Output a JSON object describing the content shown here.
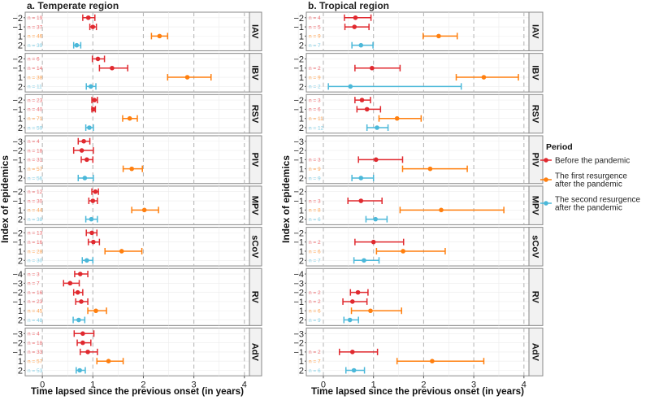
{
  "chart_data": {
    "type": "forest",
    "ylabel": "Index of epidemics",
    "xlabel": "Time lapsed since the previous onset (in years)",
    "xlim": [
      -0.34,
      4.1
    ],
    "xticks": [
      0,
      1,
      2,
      3,
      4
    ],
    "n_prefix": "n = ",
    "legend": {
      "title": "Period",
      "placement": "right",
      "items": [
        {
          "key": "before",
          "label": [
            "Before the pandemic"
          ],
          "color": "#e0292f"
        },
        {
          "key": "first",
          "label": [
            "The first resurgence",
            "after the pandemic"
          ],
          "color": "#ff7f0e"
        },
        {
          "key": "second",
          "label": [
            "The second resurgence",
            "after the pandemic"
          ],
          "color": "#4bb8d9"
        }
      ]
    },
    "row_format": [
      "index",
      "n",
      "estimate",
      "ci_low",
      "ci_high"
    ],
    "regions": [
      {
        "title": "a. Temperate region",
        "panels": [
          {
            "virus": "IAV",
            "rows": [
              [
                -2,
                19,
                0.91,
                0.8,
                1.04
              ],
              [
                -1,
                37,
                1.0,
                0.94,
                1.07
              ],
              [
                1,
                46,
                2.32,
                2.16,
                2.48
              ],
              [
                2,
                39,
                0.68,
                0.62,
                0.76
              ]
            ]
          },
          {
            "virus": "IBV",
            "rows": [
              [
                -2,
                6,
                1.1,
                0.99,
                1.23
              ],
              [
                -1,
                14,
                1.38,
                1.13,
                1.69
              ],
              [
                1,
                38,
                2.87,
                2.48,
                3.34
              ],
              [
                2,
                11,
                0.96,
                0.87,
                1.06
              ]
            ]
          },
          {
            "virus": "RSV",
            "rows": [
              [
                -2,
                23,
                1.03,
                0.98,
                1.09
              ],
              [
                -1,
                40,
                1.01,
                0.98,
                1.05
              ],
              [
                1,
                71,
                1.73,
                1.59,
                1.88
              ],
              [
                2,
                59,
                0.93,
                0.86,
                1.01
              ]
            ]
          },
          {
            "virus": "PIV",
            "rows": [
              [
                -3,
                4,
                0.82,
                0.71,
                0.94
              ],
              [
                -2,
                18,
                0.78,
                0.62,
                1.01
              ],
              [
                -1,
                31,
                0.88,
                0.77,
                1.0
              ],
              [
                1,
                57,
                1.77,
                1.6,
                1.98
              ],
              [
                2,
                56,
                0.84,
                0.71,
                1.01
              ]
            ]
          },
          {
            "virus": "MPV",
            "rows": [
              [
                -2,
                12,
                1.05,
                0.98,
                1.11
              ],
              [
                -1,
                30,
                1.0,
                0.92,
                1.09
              ],
              [
                1,
                44,
                2.02,
                1.77,
                2.3
              ],
              [
                2,
                38,
                0.97,
                0.86,
                1.09
              ]
            ]
          },
          {
            "virus": "sCoV",
            "rows": [
              [
                -2,
                13,
                0.98,
                0.87,
                1.08
              ],
              [
                -1,
                16,
                1.01,
                0.91,
                1.13
              ],
              [
                1,
                28,
                1.57,
                1.24,
                1.97
              ],
              [
                2,
                30,
                0.88,
                0.79,
                1.0
              ]
            ]
          },
          {
            "virus": "RV",
            "rows": [
              [
                -4,
                3,
                0.75,
                0.64,
                0.9
              ],
              [
                -3,
                7,
                0.55,
                0.42,
                0.73
              ],
              [
                -2,
                16,
                0.7,
                0.62,
                0.8
              ],
              [
                -1,
                23,
                0.77,
                0.66,
                0.9
              ],
              [
                1,
                45,
                1.06,
                0.9,
                1.27
              ],
              [
                2,
                48,
                0.72,
                0.61,
                0.84
              ]
            ]
          },
          {
            "virus": "AdV",
            "rows": [
              [
                -3,
                4,
                0.8,
                0.63,
                1.02
              ],
              [
                -2,
                18,
                0.8,
                0.69,
                0.96
              ],
              [
                -1,
                33,
                0.9,
                0.75,
                1.09
              ],
              [
                1,
                57,
                1.31,
                1.08,
                1.6
              ],
              [
                2,
                53,
                0.74,
                0.67,
                0.85
              ]
            ]
          }
        ]
      },
      {
        "title": "b. Tropical region",
        "panels": [
          {
            "virus": "IAV",
            "rows": [
              [
                -2,
                4,
                0.64,
                0.42,
                0.95
              ],
              [
                -1,
                5,
                0.62,
                0.43,
                0.91
              ],
              [
                1,
                9,
                2.3,
                1.99,
                2.67
              ],
              [
                2,
                7,
                0.75,
                0.57,
                0.99
              ]
            ]
          },
          {
            "virus": "IBV",
            "rows": [
              [
                -2,
                null,
                null,
                null,
                null
              ],
              [
                -1,
                2,
                0.97,
                0.63,
                1.53
              ],
              [
                1,
                9,
                3.2,
                2.65,
                3.89
              ],
              [
                2,
                2,
                0.54,
                0.1,
                2.75
              ]
            ]
          },
          {
            "virus": "RSV",
            "rows": [
              [
                -2,
                3,
                0.77,
                0.63,
                0.94
              ],
              [
                -1,
                6,
                0.87,
                0.67,
                1.14
              ],
              [
                1,
                11,
                1.47,
                1.11,
                1.95
              ],
              [
                2,
                12,
                1.07,
                0.87,
                1.29
              ]
            ]
          },
          {
            "virus": "PIV",
            "rows": [
              [
                -3,
                null,
                null,
                null,
                null
              ],
              [
                -2,
                null,
                null,
                null,
                null
              ],
              [
                -1,
                3,
                1.05,
                0.7,
                1.58
              ],
              [
                1,
                9,
                2.13,
                1.58,
                2.87
              ],
              [
                2,
                9,
                0.75,
                0.57,
                1.0
              ]
            ]
          },
          {
            "virus": "MPV",
            "rows": [
              [
                -2,
                null,
                null,
                null,
                null
              ],
              [
                -1,
                3,
                0.75,
                0.49,
                1.17
              ],
              [
                1,
                8,
                2.35,
                1.53,
                3.6
              ],
              [
                2,
                6,
                1.04,
                0.85,
                1.27
              ]
            ]
          },
          {
            "virus": "sCoV",
            "rows": [
              [
                -2,
                null,
                null,
                null,
                null
              ],
              [
                -1,
                2,
                1.0,
                0.63,
                1.6
              ],
              [
                1,
                6,
                1.59,
                1.06,
                2.43
              ],
              [
                2,
                7,
                0.81,
                0.61,
                1.11
              ]
            ]
          },
          {
            "virus": "RV",
            "rows": [
              [
                -4,
                null,
                null,
                null,
                null
              ],
              [
                -3,
                null,
                null,
                null,
                null
              ],
              [
                -2,
                2,
                0.69,
                0.54,
                0.89
              ],
              [
                -1,
                2,
                0.58,
                0.39,
                0.87
              ],
              [
                1,
                6,
                0.94,
                0.56,
                1.56
              ],
              [
                2,
                9,
                0.53,
                0.41,
                0.7
              ]
            ]
          },
          {
            "virus": "AdV",
            "rows": [
              [
                -3,
                null,
                null,
                null,
                null
              ],
              [
                -2,
                null,
                null,
                null,
                null
              ],
              [
                -1,
                2,
                0.58,
                0.32,
                1.08
              ],
              [
                1,
                7,
                2.17,
                1.47,
                3.2
              ],
              [
                2,
                6,
                0.61,
                0.45,
                0.82
              ]
            ]
          }
        ]
      }
    ]
  }
}
